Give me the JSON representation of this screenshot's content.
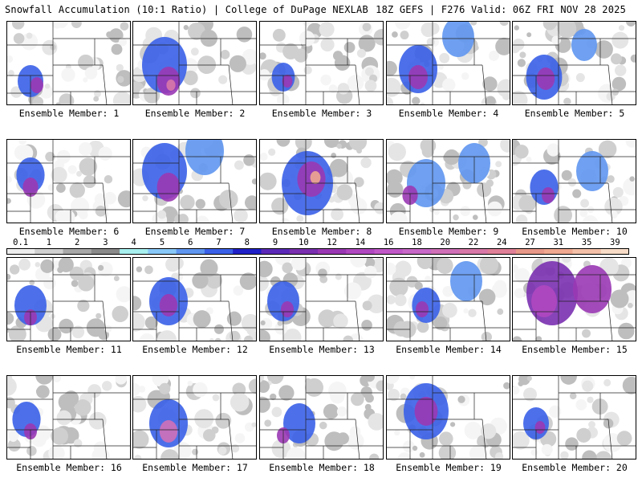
{
  "header": {
    "title_left": "Snowfall Accumulation (10:1 Ratio) | College of DuPage NEXLAB",
    "title_right": "18Z GEFS | F276 Valid: 06Z FRI NOV 28 2025"
  },
  "colorbar": {
    "labels": [
      "0.1",
      "1",
      "2",
      "3",
      "4",
      "5",
      "6",
      "7",
      "8",
      "9",
      "10",
      "12",
      "14",
      "16",
      "18",
      "20",
      "22",
      "24",
      "27",
      "31",
      "35",
      "39"
    ],
    "colors": [
      "#eeeeee",
      "#d0d0d0",
      "#a8a8a8",
      "#8a8a8a",
      "#a8f0f0",
      "#88c8f8",
      "#5f96f0",
      "#3a60e8",
      "#2020c8",
      "#5a28b8",
      "#7a30b0",
      "#9a38b4",
      "#b048c0",
      "#c058c8",
      "#c868c8",
      "#d070b8",
      "#d878a8",
      "#e08098",
      "#e89888",
      "#f0a890",
      "#f4c0a8",
      "#f8dcc8"
    ]
  },
  "panels": [
    {
      "label": "Ensemble Member: 1"
    },
    {
      "label": "Ensemble Member: 2"
    },
    {
      "label": "Ensemble Member: 3"
    },
    {
      "label": "Ensemble Member: 4"
    },
    {
      "label": "Ensemble Member: 5"
    },
    {
      "label": "Ensemble Member: 6"
    },
    {
      "label": "Ensemble Member: 7"
    },
    {
      "label": "Ensemble Member: 8"
    },
    {
      "label": "Ensemble Member: 9"
    },
    {
      "label": "Ensemble Member: 10"
    },
    {
      "label": "Ensemble Member: 11"
    },
    {
      "label": "Ensemble Member: 12"
    },
    {
      "label": "Ensemble Member: 13"
    },
    {
      "label": "Ensemble Member: 14"
    },
    {
      "label": "Ensemble Member: 15"
    },
    {
      "label": "Ensemble Member: 16"
    },
    {
      "label": "Ensemble Member: 17"
    },
    {
      "label": "Ensemble Member: 18"
    },
    {
      "label": "Ensemble Member: 19"
    },
    {
      "label": "Ensemble Member: 20"
    }
  ]
}
